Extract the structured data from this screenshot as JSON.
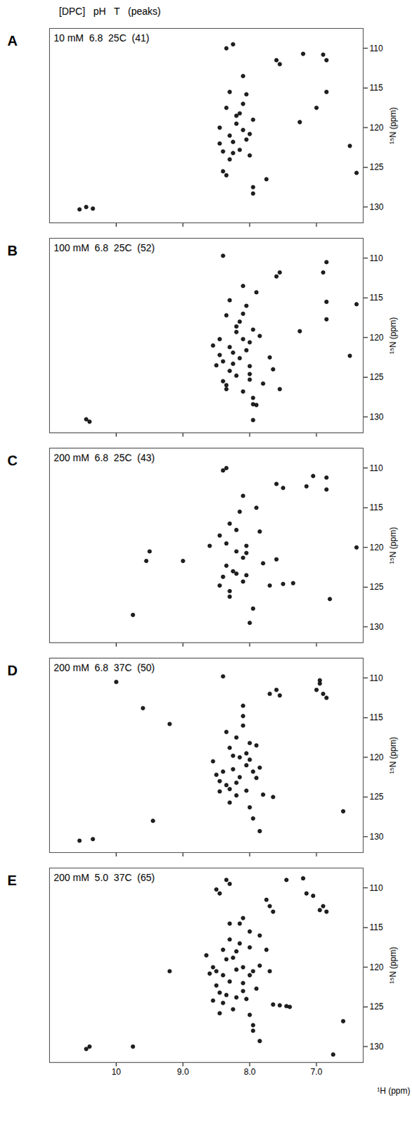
{
  "chart_data": [
    {
      "type": "scatter",
      "label": "A",
      "header": "[DPC]   pH   T   (peaks)",
      "conditions": "10 mM  6.8  25C  (41)",
      "y_label": "¹⁵N (ppm)",
      "color": "#000000",
      "tick_labels": "y",
      "grid": false,
      "xlim": [
        11.0,
        6.3
      ],
      "xticks": [
        10,
        {
          "value": 9,
          "label": "9.0"
        },
        {
          "value": 8,
          "label": "8.0"
        },
        {
          "value": 7,
          "label": "7.0"
        }
      ],
      "ylim": [
        107.5,
        132
      ],
      "yticks": [
        110,
        115,
        120,
        125,
        130
      ],
      "x": [
        8.35,
        8.25,
        7.55,
        7.6,
        6.85,
        6.9,
        7.2,
        8.1,
        8.3,
        8.05,
        7.0,
        7.25,
        8.35,
        8.15,
        8.2,
        8.1,
        8.3,
        8.0,
        8.45,
        8.4,
        8.25,
        8.15,
        8.05,
        7.95,
        8.3,
        8.4,
        8.35,
        7.95,
        7.95,
        7.75,
        10.55,
        10.45,
        10.35,
        8.2,
        8.45,
        8.1,
        8.25,
        8.0,
        6.85,
        6.5,
        6.4
      ],
      "values": [
        110.0,
        109.5,
        112.0,
        111.5,
        111.5,
        110.8,
        110.7,
        113.5,
        115.5,
        115.8,
        117.5,
        119.3,
        117.5,
        118.2,
        119.5,
        120.3,
        121.0,
        120.8,
        122.0,
        123.0,
        123.2,
        122.8,
        121.5,
        119.0,
        124.0,
        125.5,
        126.0,
        127.5,
        128.3,
        126.5,
        130.3,
        130.0,
        130.2,
        118.5,
        120.0,
        117.0,
        121.8,
        123.5,
        115.5,
        122.3,
        125.7
      ]
    },
    {
      "type": "scatter",
      "label": "B",
      "conditions": "100 mM  6.8  25C  (52)",
      "y_label": "¹⁵N (ppm)",
      "color": "#000000",
      "tick_labels": "y",
      "grid": false,
      "xlim": [
        11.0,
        6.3
      ],
      "xticks": [
        10,
        {
          "value": 9,
          "label": "9.0"
        },
        {
          "value": 8,
          "label": "8.0"
        },
        {
          "value": 7,
          "label": "7.0"
        }
      ],
      "ylim": [
        107.5,
        132
      ],
      "yticks": [
        110,
        115,
        120,
        125,
        130
      ],
      "x": [
        8.4,
        7.55,
        7.6,
        6.85,
        6.9,
        6.85,
        8.1,
        8.3,
        8.05,
        7.25,
        6.85,
        8.35,
        8.15,
        8.2,
        8.1,
        8.3,
        8.0,
        8.45,
        8.4,
        8.25,
        8.15,
        8.05,
        7.95,
        8.3,
        8.4,
        8.35,
        7.95,
        7.95,
        7.8,
        7.55,
        7.95,
        10.45,
        10.4,
        8.2,
        8.45,
        8.1,
        8.25,
        8.0,
        7.9,
        8.5,
        8.55,
        8.2,
        8.0,
        7.7,
        7.85,
        7.65,
        8.1,
        8.35,
        8.0,
        6.5,
        6.4,
        7.9
      ],
      "values": [
        109.7,
        111.8,
        112.3,
        110.5,
        111.8,
        117.7,
        113.5,
        115.3,
        116.0,
        119.2,
        115.5,
        117.2,
        118.0,
        119.3,
        120.2,
        121.2,
        120.6,
        122.2,
        123.0,
        123.3,
        122.6,
        121.6,
        119.0,
        124.2,
        125.5,
        126.0,
        127.6,
        128.4,
        125.8,
        126.5,
        130.4,
        130.3,
        130.6,
        118.6,
        120.2,
        117.0,
        121.9,
        123.6,
        114.3,
        123.5,
        121.0,
        124.8,
        124.6,
        122.5,
        119.8,
        124.0,
        126.8,
        126.5,
        125.3,
        122.3,
        115.8,
        128.5
      ]
    },
    {
      "type": "scatter",
      "label": "C",
      "conditions": "200 mM  6.8  25C  (43)",
      "y_label": "¹⁵N (ppm)",
      "color": "#000000",
      "tick_labels": "y",
      "grid": false,
      "xlim": [
        11.0,
        6.3
      ],
      "xticks": [
        10,
        {
          "value": 9,
          "label": "9.0"
        },
        {
          "value": 8,
          "label": "8.0"
        },
        {
          "value": 7,
          "label": "7.0"
        }
      ],
      "ylim": [
        107.5,
        132
      ],
      "yticks": [
        110,
        115,
        120,
        125,
        130
      ],
      "x": [
        8.35,
        8.4,
        7.5,
        7.6,
        6.85,
        6.85,
        8.1,
        8.3,
        8.2,
        8.35,
        8.05,
        8.05,
        8.1,
        8.35,
        8.25,
        8.2,
        8.05,
        8.4,
        8.3,
        8.3,
        7.95,
        9.5,
        9.55,
        9.0,
        9.75,
        7.5,
        7.35,
        7.7,
        7.9,
        6.8,
        7.8,
        8.45,
        8.2,
        7.85,
        6.4,
        7.15,
        8.0,
        8.6,
        7.05,
        8.15,
        8.45,
        8.1,
        7.6
      ],
      "values": [
        110.0,
        110.3,
        112.5,
        112.0,
        112.7,
        111.2,
        113.5,
        117.0,
        117.8,
        119.5,
        119.8,
        120.7,
        121.3,
        122.3,
        123.0,
        123.3,
        123.5,
        123.7,
        125.5,
        126.2,
        127.7,
        120.5,
        121.7,
        121.7,
        128.5,
        124.6,
        124.5,
        124.8,
        115.0,
        126.5,
        122.0,
        118.5,
        120.5,
        118.0,
        120.0,
        112.3,
        129.5,
        119.8,
        111.0,
        115.5,
        124.8,
        124.3,
        121.5
      ]
    },
    {
      "type": "scatter",
      "label": "D",
      "conditions": "200 mM  6.8  37C  (50)",
      "y_label": "¹⁵N (ppm)",
      "color": "#000000",
      "tick_labels": "y",
      "grid": false,
      "xlim": [
        11.0,
        6.3
      ],
      "xticks": [
        10,
        {
          "value": 9,
          "label": "9.0"
        },
        {
          "value": 8,
          "label": "8.0"
        },
        {
          "value": 7,
          "label": "7.0"
        }
      ],
      "ylim": [
        107.5,
        132
      ],
      "yticks": [
        110,
        115,
        120,
        125,
        130
      ],
      "x": [
        8.4,
        7.6,
        7.55,
        6.95,
        6.9,
        6.85,
        8.1,
        8.35,
        8.2,
        8.3,
        8.05,
        8.0,
        8.15,
        8.05,
        8.4,
        8.45,
        8.35,
        8.2,
        8.3,
        8.05,
        8.3,
        7.95,
        7.85,
        7.9,
        7.8,
        10.55,
        10.35,
        9.2,
        9.6,
        8.1,
        8.25,
        8.5,
        8.15,
        7.95,
        8.0,
        8.25,
        7.7,
        7.65,
        6.95,
        7.0,
        8.45,
        8.2,
        7.85,
        8.1,
        7.9,
        6.6,
        10.0,
        9.45,
        8.55,
        8.0
      ],
      "values": [
        109.8,
        111.5,
        112.2,
        110.7,
        112.0,
        112.5,
        113.5,
        116.8,
        117.5,
        118.8,
        119.5,
        120.3,
        120.0,
        121.0,
        121.8,
        123.0,
        123.5,
        123.2,
        124.0,
        124.2,
        125.7,
        127.7,
        129.3,
        118.5,
        124.7,
        130.5,
        130.3,
        115.8,
        113.8,
        116.0,
        121.5,
        122.2,
        122.5,
        121.8,
        118.2,
        119.8,
        112.0,
        125.0,
        110.3,
        111.5,
        124.3,
        124.8,
        121.3,
        114.8,
        122.6,
        126.8,
        110.5,
        128.0,
        120.5,
        126.3
      ]
    },
    {
      "type": "scatter",
      "label": "E",
      "conditions": "200 mM  5.0  37C  (65)",
      "x_label": "¹H (ppm)",
      "y_label": "¹⁵N (ppm)",
      "color": "#000000",
      "grid": false,
      "xlim": [
        11.0,
        6.3
      ],
      "xticks": [
        10,
        {
          "value": 9,
          "label": "9.0"
        },
        {
          "value": 8,
          "label": "8.0"
        },
        {
          "value": 7,
          "label": "7.0"
        }
      ],
      "ylim": [
        107.5,
        132
      ],
      "yticks": [
        110,
        115,
        120,
        125,
        130
      ],
      "x": [
        8.35,
        8.3,
        8.5,
        8.45,
        7.75,
        7.7,
        7.65,
        7.15,
        7.05,
        6.9,
        6.85,
        6.95,
        8.1,
        8.15,
        8.0,
        8.3,
        8.15,
        8.2,
        8.35,
        8.55,
        8.5,
        8.4,
        8.2,
        8.1,
        8.0,
        7.95,
        7.85,
        8.3,
        8.5,
        8.45,
        8.35,
        8.2,
        8.1,
        8.05,
        8.4,
        8.25,
        8.45,
        7.65,
        7.55,
        7.45,
        7.4,
        7.95,
        7.95,
        7.85,
        10.45,
        10.4,
        9.75,
        7.45,
        7.2,
        6.75,
        8.0,
        7.85,
        7.75,
        8.6,
        9.2,
        8.65,
        8.0,
        8.25,
        8.1,
        7.9,
        8.4,
        8.55,
        7.7,
        6.6,
        8.3
      ],
      "values": [
        109.0,
        109.5,
        110.2,
        110.7,
        111.5,
        112.3,
        113.0,
        110.7,
        111.0,
        112.3,
        113.0,
        112.8,
        113.8,
        114.5,
        115.5,
        116.5,
        117.0,
        118.0,
        119.0,
        120.0,
        120.5,
        121.0,
        120.3,
        120.0,
        121.0,
        120.5,
        119.8,
        121.8,
        122.3,
        123.2,
        123.5,
        123.8,
        123.0,
        124.0,
        124.5,
        125.3,
        125.8,
        124.7,
        124.8,
        124.9,
        125.0,
        127.3,
        128.0,
        129.3,
        130.3,
        130.0,
        130.0,
        109.0,
        108.8,
        131.0,
        117.5,
        116.0,
        117.8,
        120.8,
        120.5,
        118.5,
        126.0,
        118.8,
        122.0,
        122.7,
        117.8,
        124.2,
        120.5,
        126.8,
        114.5
      ]
    }
  ]
}
